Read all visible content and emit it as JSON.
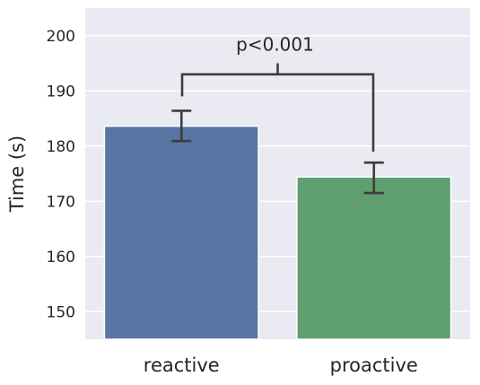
{
  "chart_data": {
    "type": "bar",
    "categories": [
      "reactive",
      "proactive"
    ],
    "values": [
      183.6,
      174.4
    ],
    "error_low": [
      180.9,
      171.5
    ],
    "error_high": [
      186.4,
      177.0
    ],
    "colors": [
      "#5875a4",
      "#5f9e6e"
    ],
    "title": "",
    "xlabel": "",
    "ylabel": "Time (s)",
    "ylim": [
      145,
      205
    ],
    "yticks": [
      150,
      160,
      170,
      180,
      190,
      200
    ],
    "ytick_labels": [
      "150",
      "160",
      "170",
      "180",
      "190",
      "200"
    ],
    "grid": true,
    "background": "#eaeaf2",
    "annotation": {
      "text": "p<0.001",
      "bracket_y": 193,
      "bracket_top": 195,
      "left_drop_to": 189,
      "right_drop_to": 179
    }
  }
}
